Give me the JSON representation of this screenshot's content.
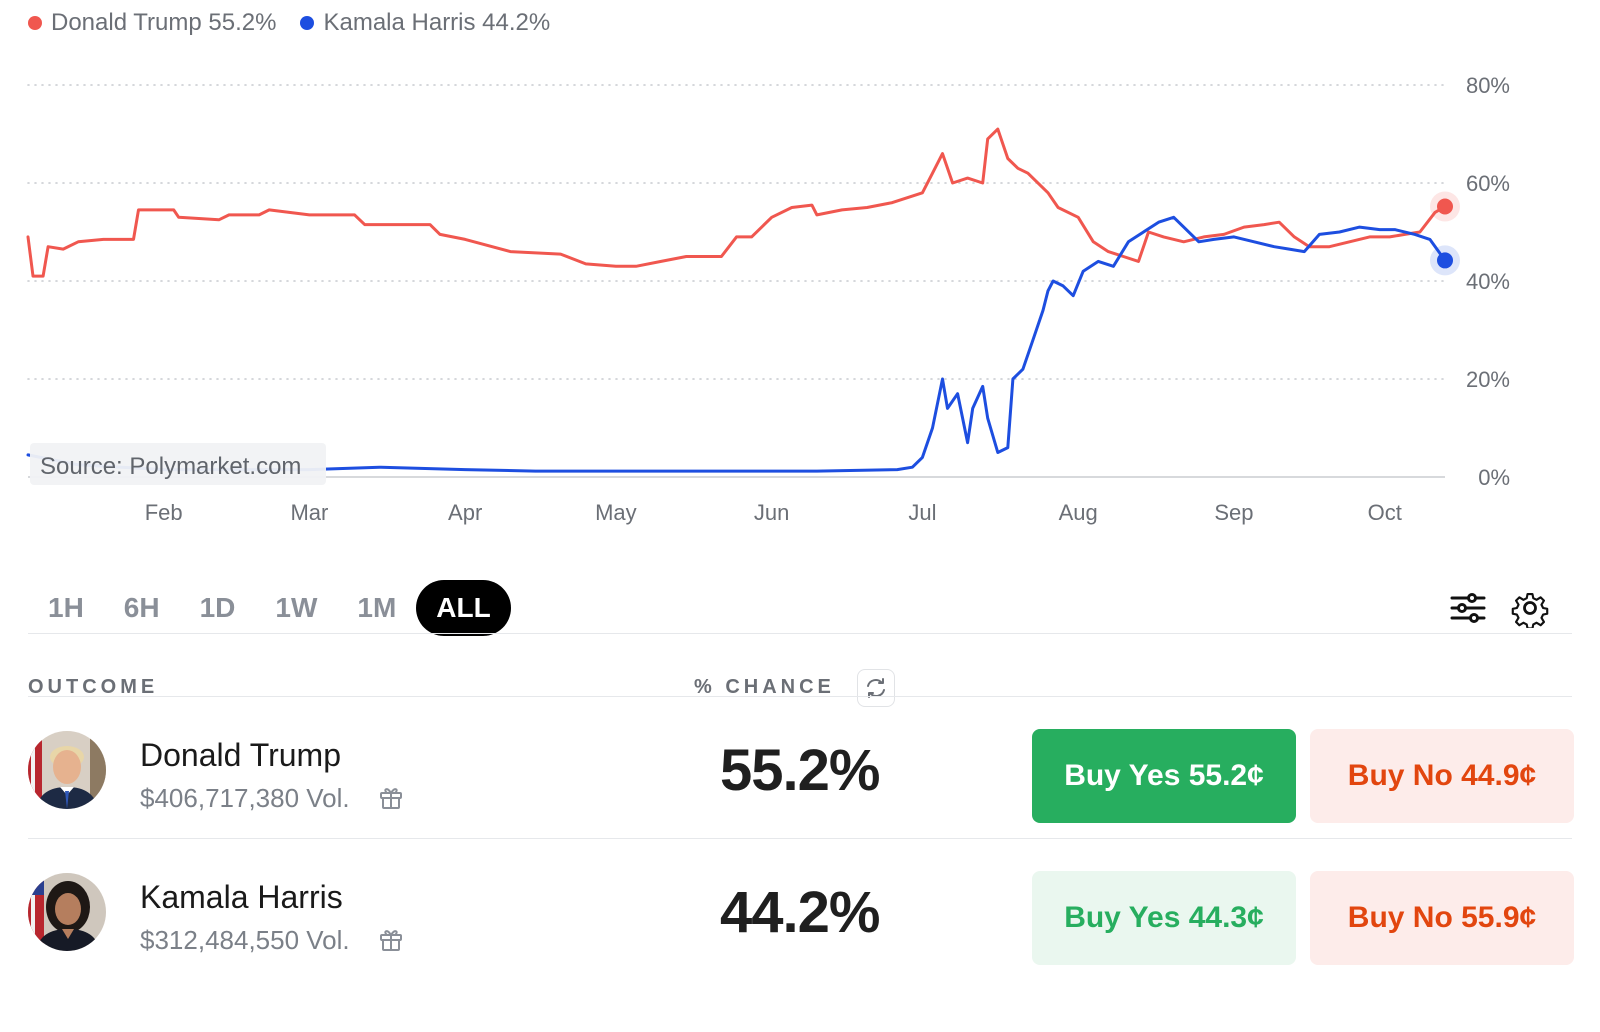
{
  "legend": [
    {
      "label": "Donald Trump 55.2%",
      "color": "#f0574f"
    },
    {
      "label": "Kamala Harris 44.2%",
      "color": "#1d4ee0"
    }
  ],
  "chart_data": {
    "type": "line",
    "source_label": "Source: Polymarket.com",
    "x_ticks": [
      "Feb",
      "Mar",
      "Apr",
      "May",
      "Jun",
      "Jul",
      "Aug",
      "Sep",
      "Oct"
    ],
    "y_ticks": [
      "0%",
      "20%",
      "40%",
      "60%",
      "80%"
    ],
    "ylim": [
      0,
      80
    ],
    "grid": true,
    "series": [
      {
        "name": "Donald Trump",
        "color": "#f0574f",
        "points": [
          [
            "Jan 5",
            49
          ],
          [
            "Jan 6",
            41
          ],
          [
            "Jan 8",
            41
          ],
          [
            "Jan 9",
            47
          ],
          [
            "Jan 12",
            46.5
          ],
          [
            "Jan 15",
            48
          ],
          [
            "Jan 20",
            48.5
          ],
          [
            "Jan 26",
            48.5
          ],
          [
            "Jan 27",
            54.5
          ],
          [
            "Feb 3",
            54.5
          ],
          [
            "Feb 4",
            53
          ],
          [
            "Feb 12",
            52.5
          ],
          [
            "Feb 14",
            53.5
          ],
          [
            "Feb 20",
            53.5
          ],
          [
            "Feb 22",
            54.5
          ],
          [
            "Mar 1",
            53.5
          ],
          [
            "Mar 10",
            53.5
          ],
          [
            "Mar 12",
            51.5
          ],
          [
            "Mar 25",
            51.5
          ],
          [
            "Mar 27",
            49.5
          ],
          [
            "Apr 1",
            48.5
          ],
          [
            "Apr 10",
            46
          ],
          [
            "Apr 20",
            45.5
          ],
          [
            "Apr 25",
            43.5
          ],
          [
            "May 1",
            43
          ],
          [
            "May 5",
            43
          ],
          [
            "May 10",
            44
          ],
          [
            "May 15",
            45
          ],
          [
            "May 22",
            45
          ],
          [
            "May 25",
            49
          ],
          [
            "May 28",
            49
          ],
          [
            "Jun 1",
            53
          ],
          [
            "Jun 5",
            55
          ],
          [
            "Jun 9",
            55.5
          ],
          [
            "Jun 10",
            53.5
          ],
          [
            "Jun 15",
            54.5
          ],
          [
            "Jun 20",
            55
          ],
          [
            "Jun 25",
            56
          ],
          [
            "Jul 1",
            58
          ],
          [
            "Jul 3",
            62
          ],
          [
            "Jul 5",
            66
          ],
          [
            "Jul 7",
            60
          ],
          [
            "Jul 10",
            61
          ],
          [
            "Jul 13",
            60
          ],
          [
            "Jul 14",
            69
          ],
          [
            "Jul 16",
            71
          ],
          [
            "Jul 18",
            65
          ],
          [
            "Jul 20",
            63
          ],
          [
            "Jul 22",
            62
          ],
          [
            "Jul 26",
            58
          ],
          [
            "Jul 28",
            55
          ],
          [
            "Aug 1",
            53
          ],
          [
            "Aug 4",
            48
          ],
          [
            "Aug 7",
            46
          ],
          [
            "Aug 10",
            45
          ],
          [
            "Aug 13",
            44
          ],
          [
            "Aug 15",
            50
          ],
          [
            "Aug 18",
            49
          ],
          [
            "Aug 22",
            48
          ],
          [
            "Aug 26",
            49
          ],
          [
            "Aug 30",
            49.5
          ],
          [
            "Sep 3",
            51
          ],
          [
            "Sep 7",
            51.5
          ],
          [
            "Sep 10",
            52
          ],
          [
            "Sep 13",
            49
          ],
          [
            "Sep 16",
            47
          ],
          [
            "Sep 20",
            47
          ],
          [
            "Sep 24",
            48
          ],
          [
            "Sep 28",
            49
          ],
          [
            "Oct 2",
            49
          ],
          [
            "Oct 5",
            49.5
          ],
          [
            "Oct 8",
            50
          ],
          [
            "Oct 11",
            54
          ],
          [
            "Oct 13",
            55.2
          ]
        ]
      },
      {
        "name": "Kamala Harris",
        "color": "#1d4ee0",
        "points": [
          [
            "Jan 5",
            4.5
          ],
          [
            "Jan 10",
            3.5
          ],
          [
            "Jan 15",
            2.5
          ],
          [
            "Feb 1",
            1.5
          ],
          [
            "Feb 15",
            1.5
          ],
          [
            "Mar 1",
            1.5
          ],
          [
            "Mar 15",
            2
          ],
          [
            "Apr 1",
            1.5
          ],
          [
            "Apr 15",
            1.2
          ],
          [
            "May 1",
            1.2
          ],
          [
            "May 20",
            1.2
          ],
          [
            "Jun 10",
            1.2
          ],
          [
            "Jun 26",
            1.5
          ],
          [
            "Jun 29",
            2
          ],
          [
            "Jul 1",
            4
          ],
          [
            "Jul 3",
            10
          ],
          [
            "Jul 5",
            20
          ],
          [
            "Jul 6",
            14
          ],
          [
            "Jul 8",
            17
          ],
          [
            "Jul 10",
            7
          ],
          [
            "Jul 11",
            14
          ],
          [
            "Jul 13",
            18.5
          ],
          [
            "Jul 14",
            12
          ],
          [
            "Jul 16",
            5
          ],
          [
            "Jul 18",
            6
          ],
          [
            "Jul 19",
            20
          ],
          [
            "Jul 21",
            22
          ],
          [
            "Jul 23",
            28
          ],
          [
            "Jul 25",
            34
          ],
          [
            "Jul 26",
            38
          ],
          [
            "Jul 27",
            40
          ],
          [
            "Jul 29",
            39
          ],
          [
            "Jul 31",
            37
          ],
          [
            "Aug 2",
            42
          ],
          [
            "Aug 5",
            44
          ],
          [
            "Aug 8",
            43
          ],
          [
            "Aug 11",
            48
          ],
          [
            "Aug 14",
            50
          ],
          [
            "Aug 17",
            52
          ],
          [
            "Aug 20",
            53
          ],
          [
            "Aug 22",
            51
          ],
          [
            "Aug 25",
            48
          ],
          [
            "Aug 28",
            48.5
          ],
          [
            "Sep 1",
            49
          ],
          [
            "Sep 5",
            48
          ],
          [
            "Sep 9",
            47
          ],
          [
            "Sep 12",
            46.5
          ],
          [
            "Sep 15",
            46
          ],
          [
            "Sep 18",
            49.5
          ],
          [
            "Sep 22",
            50
          ],
          [
            "Sep 26",
            51
          ],
          [
            "Sep 30",
            50.5
          ],
          [
            "Oct 3",
            50.5
          ],
          [
            "Oct 7",
            49.5
          ],
          [
            "Oct 10",
            48.5
          ],
          [
            "Oct 13",
            44.2
          ]
        ]
      }
    ]
  },
  "timeframes": [
    {
      "label": "1H",
      "active": false
    },
    {
      "label": "6H",
      "active": false
    },
    {
      "label": "1D",
      "active": false
    },
    {
      "label": "1W",
      "active": false
    },
    {
      "label": "1M",
      "active": false
    },
    {
      "label": "ALL",
      "active": true
    }
  ],
  "icons": {
    "filters": "sliders-icon",
    "settings": "gear-icon",
    "refresh": "refresh-icon",
    "gift": "gift-icon"
  },
  "table": {
    "outcome_header": "OUTCOME",
    "chance_header": "% CHANCE"
  },
  "outcomes": [
    {
      "name": "Donald Trump",
      "volume": "$406,717,380 Vol.",
      "chance": "55.2%",
      "buy_yes": "Buy Yes 55.2¢",
      "buy_no": "Buy No 44.9¢",
      "yes_bg": "#27ae5f",
      "yes_fg": "#ffffff",
      "no_bg": "#fdecea",
      "no_fg": "#e2460f"
    },
    {
      "name": "Kamala Harris",
      "volume": "$312,484,550 Vol.",
      "chance": "44.2%",
      "buy_yes": "Buy Yes 44.3¢",
      "buy_no": "Buy No 55.9¢",
      "yes_bg": "#eaf7ef",
      "yes_fg": "#27ae5f",
      "no_bg": "#fdecea",
      "no_fg": "#e2460f"
    }
  ]
}
